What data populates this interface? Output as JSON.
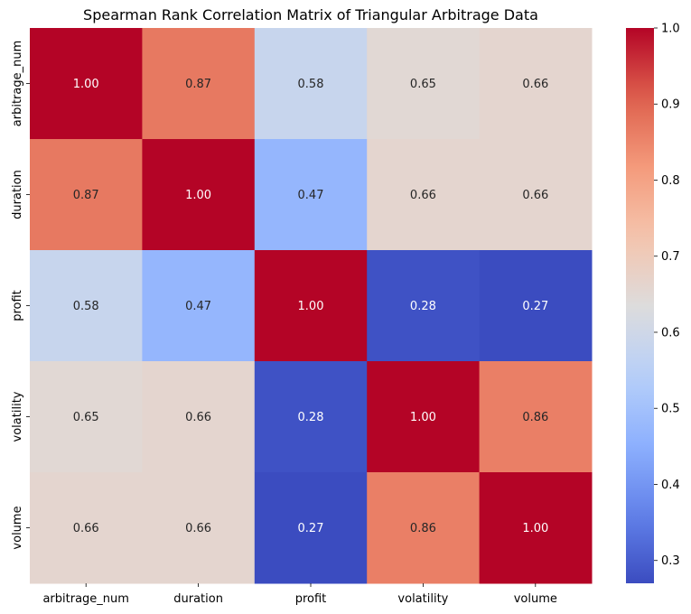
{
  "chart_data": {
    "type": "heatmap",
    "title": "Spearman Rank Correlation Matrix of Triangular Arbitrage Data",
    "rows": [
      "arbitrage_num",
      "duration",
      "profit",
      "volatility",
      "volume"
    ],
    "cols": [
      "arbitrage_num",
      "duration",
      "profit",
      "volatility",
      "volume"
    ],
    "values": [
      [
        1.0,
        0.87,
        0.58,
        0.65,
        0.66
      ],
      [
        0.87,
        1.0,
        0.47,
        0.66,
        0.66
      ],
      [
        0.58,
        0.47,
        1.0,
        0.28,
        0.27
      ],
      [
        0.65,
        0.66,
        0.28,
        1.0,
        0.86
      ],
      [
        0.66,
        0.66,
        0.27,
        0.86,
        1.0
      ]
    ],
    "colormap": "coolwarm",
    "vmin": 0.27,
    "vmax": 1.0,
    "colorbar_ticks": [
      "0.3",
      "0.4",
      "0.5",
      "0.6",
      "0.7",
      "0.8",
      "0.9",
      "1.0"
    ]
  }
}
